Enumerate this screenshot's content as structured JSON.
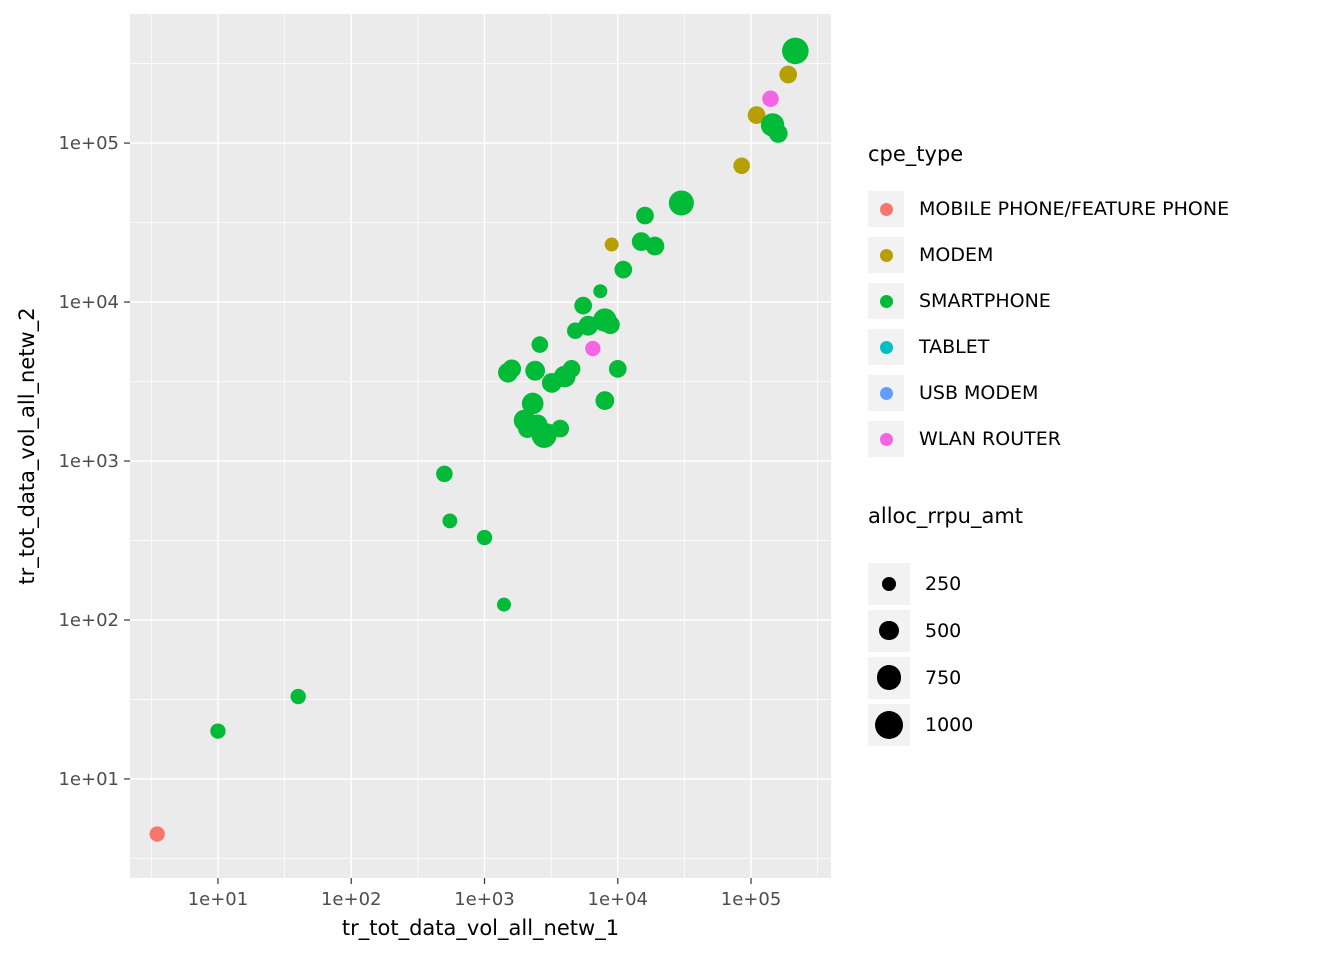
{
  "chart_data": {
    "type": "scatter",
    "title": "",
    "xlabel": "tr_tot_data_vol_all_netw_1",
    "ylabel": "tr_tot_data_vol_all_netw_2",
    "x_scale": "log10",
    "y_scale": "log10",
    "x_domain_log10": [
      0.34,
      5.6
    ],
    "y_domain_log10": [
      0.377,
      5.812
    ],
    "grid": "major and minor white gridlines on gray panel",
    "panel_background": "#EBEBEB",
    "grid_color": "#FFFFFF",
    "legend_position": "right",
    "x_ticks": [
      {
        "value": 10,
        "label": "1e+01"
      },
      {
        "value": 100,
        "label": "1e+02"
      },
      {
        "value": 1000,
        "label": "1e+03"
      },
      {
        "value": 10000,
        "label": "1e+04"
      },
      {
        "value": 100000,
        "label": "1e+05"
      }
    ],
    "y_ticks": [
      {
        "value": 10,
        "label": "1e+01"
      },
      {
        "value": 100,
        "label": "1e+02"
      },
      {
        "value": 1000,
        "label": "1e+03"
      },
      {
        "value": 10000,
        "label": "1e+04"
      },
      {
        "value": 100000,
        "label": "1e+05"
      }
    ],
    "color_legend": {
      "title": "cpe_type",
      "items": [
        {
          "label": "MOBILE PHONE/FEATURE PHONE",
          "color": "#F8766D"
        },
        {
          "label": "MODEM",
          "color": "#B79F00"
        },
        {
          "label": "SMARTPHONE",
          "color": "#00BA38"
        },
        {
          "label": "TABLET",
          "color": "#00BFC4"
        },
        {
          "label": "USB MODEM",
          "color": "#619CFF"
        },
        {
          "label": "WLAN ROUTER",
          "color": "#F564E3"
        }
      ]
    },
    "size_legend": {
      "title": "alloc_rrpu_amt",
      "items": [
        {
          "label": "250",
          "value": 250
        },
        {
          "label": "500",
          "value": 500
        },
        {
          "label": "750",
          "value": 750
        },
        {
          "label": "1000",
          "value": 1000
        }
      ]
    },
    "points": [
      {
        "x": 3.5,
        "y": 4.5,
        "cpe_type": "MOBILE PHONE/FEATURE PHONE",
        "alloc_rrpu_amt": 300
      },
      {
        "x": 10,
        "y": 20,
        "cpe_type": "SMARTPHONE",
        "alloc_rrpu_amt": 300
      },
      {
        "x": 40,
        "y": 33,
        "cpe_type": "SMARTPHONE",
        "alloc_rrpu_amt": 300
      },
      {
        "x": 500,
        "y": 830,
        "cpe_type": "SMARTPHONE",
        "alloc_rrpu_amt": 350
      },
      {
        "x": 550,
        "y": 420,
        "cpe_type": "SMARTPHONE",
        "alloc_rrpu_amt": 280
      },
      {
        "x": 1000,
        "y": 330,
        "cpe_type": "SMARTPHONE",
        "alloc_rrpu_amt": 300
      },
      {
        "x": 1400,
        "y": 125,
        "cpe_type": "SMARTPHONE",
        "alloc_rrpu_amt": 250
      },
      {
        "x": 1500,
        "y": 3600,
        "cpe_type": "SMARTPHONE",
        "alloc_rrpu_amt": 500
      },
      {
        "x": 1600,
        "y": 3800,
        "cpe_type": "SMARTPHONE",
        "alloc_rrpu_amt": 450
      },
      {
        "x": 2000,
        "y": 1800,
        "cpe_type": "SMARTPHONE",
        "alloc_rrpu_amt": 600
      },
      {
        "x": 2100,
        "y": 1600,
        "cpe_type": "SMARTPHONE",
        "alloc_rrpu_amt": 450
      },
      {
        "x": 2300,
        "y": 2300,
        "cpe_type": "SMARTPHONE",
        "alloc_rrpu_amt": 600
      },
      {
        "x": 2400,
        "y": 3700,
        "cpe_type": "SMARTPHONE",
        "alloc_rrpu_amt": 500
      },
      {
        "x": 2500,
        "y": 1700,
        "cpe_type": "SMARTPHONE",
        "alloc_rrpu_amt": 500
      },
      {
        "x": 2600,
        "y": 5400,
        "cpe_type": "SMARTPHONE",
        "alloc_rrpu_amt": 350
      },
      {
        "x": 2800,
        "y": 1450,
        "cpe_type": "SMARTPHONE",
        "alloc_rrpu_amt": 800
      },
      {
        "x": 3000,
        "y": 1500,
        "cpe_type": "SMARTPHONE",
        "alloc_rrpu_amt": 450
      },
      {
        "x": 3200,
        "y": 3100,
        "cpe_type": "SMARTPHONE",
        "alloc_rrpu_amt": 500
      },
      {
        "x": 3700,
        "y": 1600,
        "cpe_type": "SMARTPHONE",
        "alloc_rrpu_amt": 400
      },
      {
        "x": 4000,
        "y": 3400,
        "cpe_type": "SMARTPHONE",
        "alloc_rrpu_amt": 600
      },
      {
        "x": 4500,
        "y": 3800,
        "cpe_type": "SMARTPHONE",
        "alloc_rrpu_amt": 400
      },
      {
        "x": 4800,
        "y": 6600,
        "cpe_type": "SMARTPHONE",
        "alloc_rrpu_amt": 350
      },
      {
        "x": 5500,
        "y": 9500,
        "cpe_type": "SMARTPHONE",
        "alloc_rrpu_amt": 400
      },
      {
        "x": 6000,
        "y": 7100,
        "cpe_type": "SMARTPHONE",
        "alloc_rrpu_amt": 500
      },
      {
        "x": 6500,
        "y": 5100,
        "cpe_type": "WLAN ROUTER",
        "alloc_rrpu_amt": 300
      },
      {
        "x": 7400,
        "y": 11700,
        "cpe_type": "SMARTPHONE",
        "alloc_rrpu_amt": 250
      },
      {
        "x": 8000,
        "y": 7700,
        "cpe_type": "SMARTPHONE",
        "alloc_rrpu_amt": 700
      },
      {
        "x": 8800,
        "y": 7200,
        "cpe_type": "SMARTPHONE",
        "alloc_rrpu_amt": 450
      },
      {
        "x": 8000,
        "y": 2400,
        "cpe_type": "SMARTPHONE",
        "alloc_rrpu_amt": 450
      },
      {
        "x": 10000,
        "y": 3800,
        "cpe_type": "SMARTPHONE",
        "alloc_rrpu_amt": 400
      },
      {
        "x": 11000,
        "y": 16000,
        "cpe_type": "SMARTPHONE",
        "alloc_rrpu_amt": 400
      },
      {
        "x": 9000,
        "y": 23000,
        "cpe_type": "MODEM",
        "alloc_rrpu_amt": 250
      },
      {
        "x": 15000,
        "y": 24000,
        "cpe_type": "SMARTPHONE",
        "alloc_rrpu_amt": 450
      },
      {
        "x": 16000,
        "y": 35000,
        "cpe_type": "SMARTPHONE",
        "alloc_rrpu_amt": 400
      },
      {
        "x": 19000,
        "y": 22500,
        "cpe_type": "SMARTPHONE",
        "alloc_rrpu_amt": 450
      },
      {
        "x": 30000,
        "y": 42000,
        "cpe_type": "SMARTPHONE",
        "alloc_rrpu_amt": 800
      },
      {
        "x": 85000,
        "y": 72000,
        "cpe_type": "MODEM",
        "alloc_rrpu_amt": 350
      },
      {
        "x": 110000,
        "y": 150000,
        "cpe_type": "MODEM",
        "alloc_rrpu_amt": 400
      },
      {
        "x": 140000,
        "y": 190000,
        "cpe_type": "WLAN ROUTER",
        "alloc_rrpu_amt": 350
      },
      {
        "x": 145000,
        "y": 130000,
        "cpe_type": "SMARTPHONE",
        "alloc_rrpu_amt": 700
      },
      {
        "x": 160000,
        "y": 115000,
        "cpe_type": "SMARTPHONE",
        "alloc_rrpu_amt": 450
      },
      {
        "x": 190000,
        "y": 270000,
        "cpe_type": "MODEM",
        "alloc_rrpu_amt": 400
      },
      {
        "x": 215000,
        "y": 380000,
        "cpe_type": "SMARTPHONE",
        "alloc_rrpu_amt": 900
      }
    ]
  }
}
